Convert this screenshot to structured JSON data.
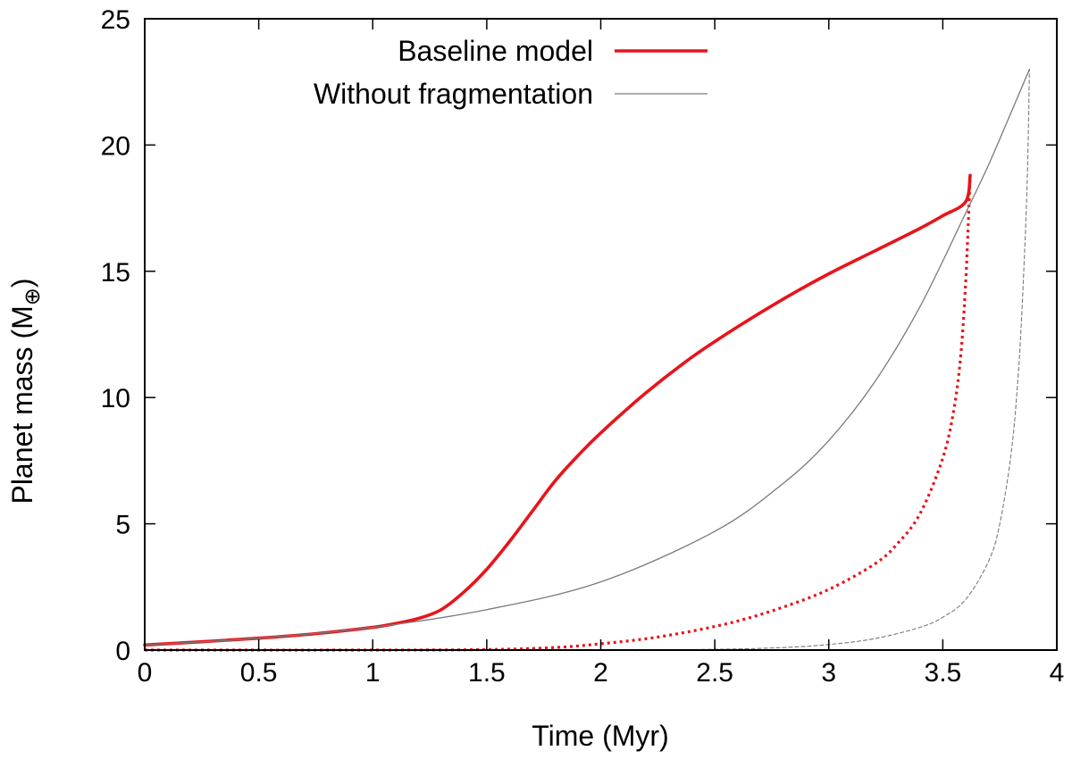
{
  "chart_data": {
    "type": "line",
    "title": "",
    "xlabel": "Time (Myr)",
    "ylabel": "Planet mass (M⊕)",
    "ylabel_parts": {
      "main": "Planet mass (M",
      "subscript": "⊕",
      "close": ")"
    },
    "xlim": [
      0,
      4
    ],
    "ylim": [
      0,
      25
    ],
    "x_ticks": [
      0,
      0.5,
      1,
      1.5,
      2,
      2.5,
      3,
      3.5,
      4
    ],
    "x_tick_labels": [
      "0",
      "0.5",
      "1",
      "1.5",
      "2",
      "2.5",
      "3",
      "3.5",
      "4"
    ],
    "y_ticks": [
      0,
      5,
      10,
      15,
      20,
      25
    ],
    "y_tick_labels": [
      "0",
      "5",
      "10",
      "15",
      "20",
      "25"
    ],
    "grid": false,
    "legend_position": "top",
    "legend": [
      {
        "label": "Baseline model",
        "color": "#e8141b",
        "style": "solid-thick"
      },
      {
        "label": "Without fragmentation",
        "color": "#7a7a7a",
        "style": "solid-thin"
      }
    ],
    "series": [
      {
        "name": "Baseline model",
        "color": "#e8141b",
        "style": "solid",
        "x": [
          0,
          0.25,
          0.5,
          0.75,
          1.0,
          1.1,
          1.2,
          1.3,
          1.4,
          1.5,
          1.6,
          1.7,
          1.8,
          1.9,
          2.0,
          2.2,
          2.4,
          2.6,
          2.8,
          3.0,
          3.2,
          3.4,
          3.5,
          3.6,
          3.62
        ],
        "y": [
          0.2,
          0.33,
          0.47,
          0.65,
          0.9,
          1.05,
          1.25,
          1.6,
          2.3,
          3.2,
          4.3,
          5.5,
          6.7,
          7.7,
          8.6,
          10.2,
          11.6,
          12.8,
          13.9,
          14.9,
          15.8,
          16.7,
          17.2,
          17.75,
          18.8
        ]
      },
      {
        "name": "Baseline model (dotted)",
        "color": "#e8141b",
        "style": "dotted",
        "x": [
          0,
          1.0,
          1.5,
          1.8,
          2.0,
          2.2,
          2.4,
          2.6,
          2.8,
          3.0,
          3.2,
          3.3,
          3.4,
          3.5,
          3.55,
          3.58,
          3.6,
          3.61,
          3.62
        ],
        "y": [
          0,
          0.0,
          0.02,
          0.1,
          0.25,
          0.45,
          0.75,
          1.15,
          1.7,
          2.4,
          3.4,
          4.2,
          5.4,
          7.6,
          9.6,
          11.8,
          14.5,
          16.5,
          18.8
        ]
      },
      {
        "name": "Without fragmentation",
        "color": "#7a7a7a",
        "style": "solid",
        "x": [
          0,
          0.5,
          1.0,
          1.5,
          2.0,
          2.5,
          2.8,
          3.0,
          3.2,
          3.4,
          3.6,
          3.7,
          3.8,
          3.88
        ],
        "y": [
          0.2,
          0.47,
          0.9,
          1.6,
          2.7,
          4.7,
          6.6,
          8.3,
          10.6,
          13.6,
          17.3,
          19.2,
          21.3,
          23.0
        ]
      },
      {
        "name": "Without fragmentation (dashed)",
        "color": "#7a7a7a",
        "style": "dashed",
        "x": [
          0,
          1.0,
          2.0,
          2.5,
          2.8,
          3.0,
          3.2,
          3.4,
          3.5,
          3.6,
          3.7,
          3.75,
          3.8,
          3.83,
          3.85,
          3.87,
          3.88
        ],
        "y": [
          0,
          0.0,
          0.0,
          0.03,
          0.1,
          0.22,
          0.45,
          0.9,
          1.3,
          2.0,
          3.5,
          5.0,
          7.8,
          10.8,
          14.0,
          18.5,
          23.0
        ]
      }
    ]
  }
}
